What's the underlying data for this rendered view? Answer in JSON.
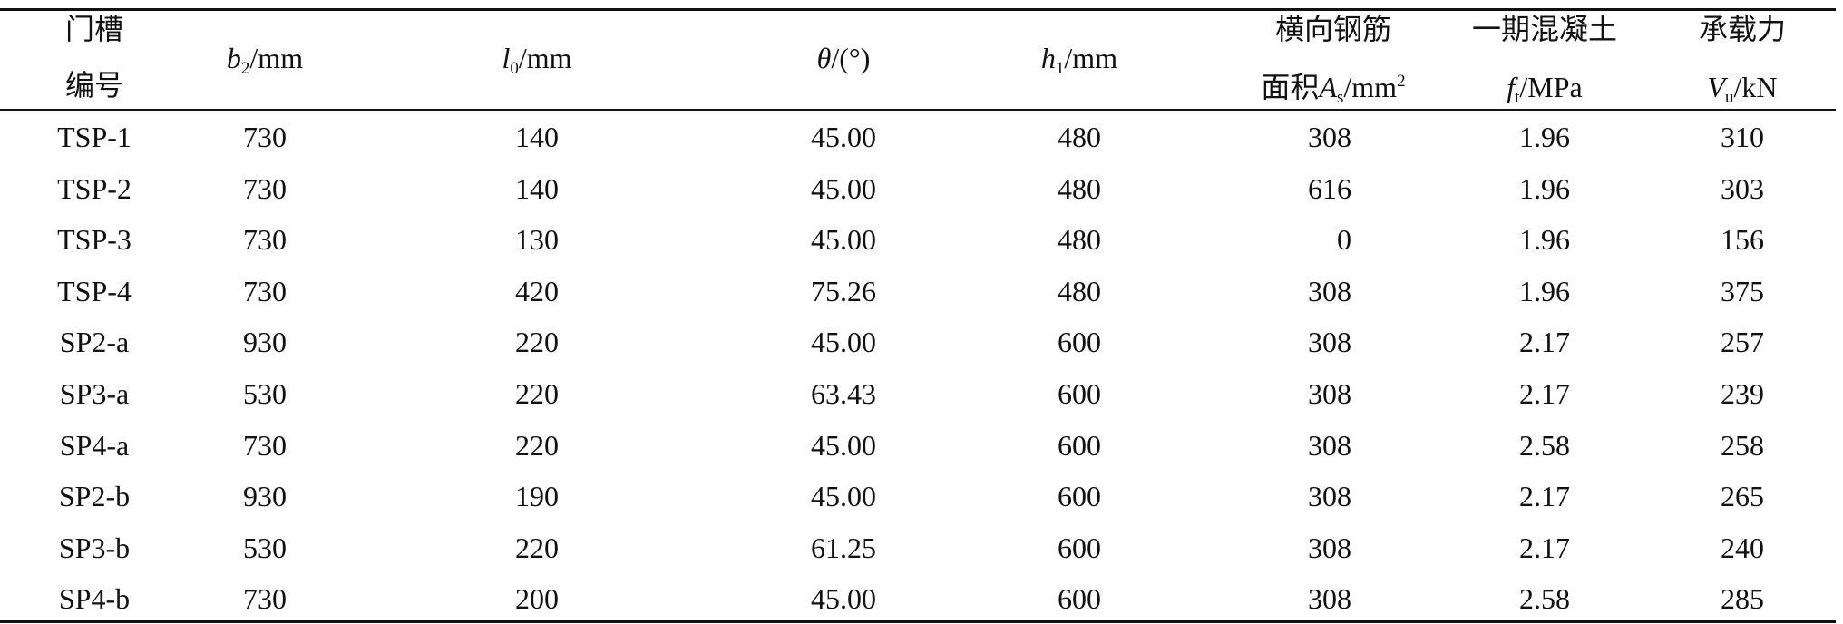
{
  "table": {
    "header": [
      {
        "lines": [
          "门槽",
          "编号"
        ]
      },
      {
        "symbol": "b",
        "subscript": "2",
        "unit": "/mm"
      },
      {
        "symbol": "l",
        "subscript": "0",
        "unit": "/mm"
      },
      {
        "symbol": "θ",
        "unit": "/(°)"
      },
      {
        "symbol": "h",
        "subscript": "1",
        "unit": "/mm"
      },
      {
        "label": "横向钢筋",
        "prefix": "面积",
        "symbol": "A",
        "subscript": "s",
        "unit": "/mm",
        "superscript": "2"
      },
      {
        "label": "一期混凝土",
        "symbol": "f",
        "subscript": "t",
        "unit": "/MPa"
      },
      {
        "label": "承载力",
        "symbol": "V",
        "subscript": "u",
        "unit": "/kN"
      }
    ],
    "rows": [
      [
        "TSP-1",
        730,
        140,
        "45.00",
        480,
        308,
        1.96,
        310
      ],
      [
        "TSP-2",
        730,
        140,
        "45.00",
        480,
        616,
        1.96,
        303
      ],
      [
        "TSP-3",
        730,
        130,
        "45.00",
        480,
        0,
        1.96,
        156
      ],
      [
        "TSP-4",
        730,
        420,
        "75.26",
        480,
        308,
        1.96,
        375
      ],
      [
        "SP2-a",
        930,
        220,
        "45.00",
        600,
        308,
        2.17,
        257
      ],
      [
        "SP3-a",
        530,
        220,
        "63.43",
        600,
        308,
        2.17,
        239
      ],
      [
        "SP4-a",
        730,
        220,
        "45.00",
        600,
        308,
        2.58,
        258
      ],
      [
        "SP2-b",
        930,
        190,
        "45.00",
        600,
        308,
        2.17,
        265
      ],
      [
        "SP3-b",
        530,
        220,
        "61.25",
        600,
        308,
        2.17,
        240
      ],
      [
        "SP4-b",
        730,
        200,
        "45.00",
        600,
        308,
        2.58,
        285
      ]
    ]
  }
}
